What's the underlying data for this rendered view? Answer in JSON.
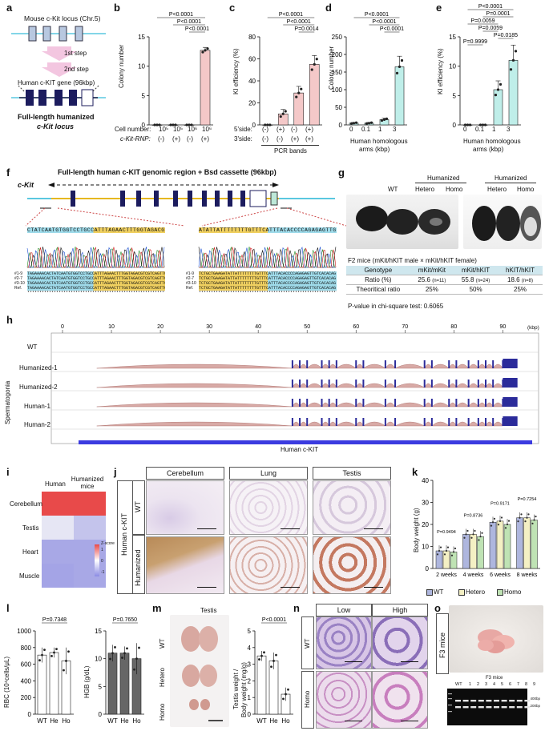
{
  "panels": {
    "a": "a",
    "b": "b",
    "c": "c",
    "d": "d",
    "e": "e",
    "f": "f",
    "g": "g",
    "h": "h",
    "i": "i",
    "j": "j",
    "k": "k",
    "l": "l",
    "m": "m",
    "n": "n",
    "o": "o"
  },
  "panel_a": {
    "mouse_locus": "Mouse c-Kit locus (Chr.5)",
    "step1": "1st step",
    "step2": "2nd step",
    "human_gene": "Human c-KIT gene (96kbp)",
    "result_line1": "Full-length humanized",
    "result_line2": "c-Kit locus"
  },
  "panel_b": {
    "ylabel": "Colony number",
    "row1_label": "Cell number:",
    "row1": [
      "10⁵",
      "10⁵",
      "10⁶",
      "10⁶"
    ],
    "row2_label": "c-Kit-RNP:",
    "row2": [
      "(-)",
      "(+)",
      "(-)",
      "(+)"
    ],
    "yticks": [
      "0",
      "5",
      "10",
      "15"
    ],
    "pvals": [
      "P<0.0001",
      "P<0.0001",
      "P<0.0001"
    ]
  },
  "panel_c": {
    "ylabel": "KI efficiency (%)",
    "row1_label": "5'side:",
    "row1": [
      "(-)",
      "(+)",
      "(-)",
      "(+)"
    ],
    "row2_label": "3'side:",
    "row2": [
      "(-)",
      "(-)",
      "(+)",
      "(+)"
    ],
    "xlabel": "PCR bands",
    "yticks": [
      "0",
      "20",
      "40",
      "60",
      "80"
    ],
    "pvals": [
      "P<0.0001",
      "P<0.0001",
      "P=0.0014"
    ]
  },
  "panel_d": {
    "ylabel": "Colony number",
    "xticks": [
      "0",
      "0.1",
      "1",
      "3"
    ],
    "xlabel1": "Human homologous",
    "xlabel2": "arms (kbp)",
    "yticks": [
      "0",
      "50",
      "100",
      "150",
      "200",
      "250"
    ],
    "pvals": [
      "P<0.0001",
      "P<0.0001",
      "P<0.0001"
    ]
  },
  "panel_e": {
    "ylabel": "KI efficiency (%)",
    "xticks": [
      "0",
      "0.1",
      "1",
      "3"
    ],
    "xlabel1": "Human homologous",
    "xlabel2": "arms (kbp)",
    "yticks": [
      "0",
      "5",
      "10",
      "15"
    ],
    "pvals": [
      "P<0.0001",
      "P=0.0001",
      "P=0.0059",
      "P=0.0059",
      "P=0.0185",
      "P=0.9999"
    ]
  },
  "panel_f": {
    "title": "Full-length human c-KIT genomic region + Bsd cassette (96kbp)",
    "locus": "c-Kit",
    "seq_left": "CTATCAATGTGGTCCTGCCATTTAGAACTTTGGTAGACG",
    "seq_right": "ATATTATTTTTTTTGTTTCATTTACACCCCAGAGAGTTG",
    "row_labels": [
      "#1-9",
      "#2-7",
      "#3-10",
      "Ref."
    ],
    "left_rows": [
      "TAGAAAACACTATCAATGTGGTCCTGCCATTTAGAACTTTGGTAGACGTCGTCAGTTC",
      "TAGAAAACACTATCAATGTGGTCCTGCCATTTAGAACTTTGGTAGACGTCGTCAGTTC",
      "TAGAAAACACTATCAATGTGGTCCTGCCATTTAGAACTTTGGTAGACGTCGTCAGTTC",
      "TAGAAAACACTATCAATGTGGTCCTGCCATTTAGAACTTTGGTAGACGTCGTCAGTTC"
    ],
    "right_rows": [
      "TCTGCTGAAGATATTATTTTTTTTGTTTCATTTACACCCCAGAGAGTTGTCACACAG",
      "TCTGCTGAAGATATTATTTTTTTTGTTTCATTTACACCCCAGAGAGTTGTCACACAG",
      "TCTGCTGAAGATATTATTTTTTTTGTTTCATTTACACCCCAGAGAGTTGTCACACAG",
      "TCTGCTGAAGATATTATTTTTTTTGTTTCATTTACACCCCAGAGAGTTGTCACACAG"
    ],
    "stars": "**************************************************************"
  },
  "panel_g": {
    "labels_left": [
      "WT",
      "Hetero",
      "Homo"
    ],
    "labels_right": [
      "Hetero",
      "Homo"
    ],
    "humanized": "Humanized",
    "table_title": "F2 mice (mKit/hKIT male × mKit/hKIT female)",
    "header": [
      "Genotype",
      "mKit/mKit",
      "mKit/hKIT",
      "hKIT/hKIT"
    ],
    "ratio_label": "Ratio (%)",
    "ratio": [
      "25.6",
      "55.8",
      "18.6"
    ],
    "ratio_n": [
      "(n=11)",
      "(n=24)",
      "(n=8)"
    ],
    "theo_label": "Theoritical ratio",
    "theo": [
      "25%",
      "50%",
      "25%"
    ],
    "pval": "P-value in chi-square test: 0.6065"
  },
  "panel_h": {
    "unit": "(kbp)",
    "ticks": [
      "0",
      "10",
      "20",
      "30",
      "40",
      "50",
      "60",
      "70",
      "80",
      "90"
    ],
    "tracks": [
      "WT",
      "Humanized-1",
      "Humanized-2",
      "Human-1",
      "Human-2"
    ],
    "side_label": "Spermatogonia",
    "gene": "Human c-KIT"
  },
  "panel_i": {
    "cols": [
      "Human",
      "Humanized mice"
    ],
    "rows": [
      "Cerebellum",
      "Testis",
      "Heart",
      "Muscle"
    ],
    "legend_title": "Z-score",
    "legend_ticks": [
      "1",
      "0",
      "-1"
    ]
  },
  "panel_j": {
    "cols": [
      "Cerebellum",
      "Lung",
      "Testis"
    ],
    "rows": [
      "WT",
      "Humanized"
    ],
    "side_label": "Human c-KIT"
  },
  "panel_k": {
    "ylabel": "Body weight (g)",
    "groups": [
      "2 weeks",
      "4 weeks",
      "6 weeks",
      "8 weeks"
    ],
    "pvals": [
      "P=0.9494",
      "P=0.8736",
      "P=0.9171",
      "P=0.7254"
    ],
    "legend": [
      "WT",
      "Hetero",
      "Homo"
    ],
    "yticks": [
      "0",
      "10",
      "20",
      "30",
      "40"
    ]
  },
  "panel_l": {
    "ylabel1": "RBC (10⁴cells/μL)",
    "ylabel2": "HGB (g/dL)",
    "xticks": [
      "WT",
      "He",
      "Ho"
    ],
    "pval1": "P=0.7348",
    "pval2": "P=0.7650",
    "yticks1": [
      "0",
      "200",
      "400",
      "600",
      "800",
      "1000"
    ],
    "yticks2": [
      "0",
      "5",
      "10",
      "15"
    ]
  },
  "panel_m": {
    "title": "Testis",
    "labels": [
      "WT",
      "Hetero",
      "Homo"
    ],
    "ylabel1": "Testis weight /",
    "ylabel2": "Body weight (mg/g)",
    "xticks": [
      "WT",
      "He",
      "Ho"
    ],
    "pval": "P<0.0001",
    "yticks": [
      "0",
      "1",
      "2",
      "3",
      "4",
      "5"
    ]
  },
  "panel_n": {
    "cols": [
      "Low",
      "High"
    ],
    "rows": [
      "WT",
      "Homo"
    ]
  },
  "panel_o": {
    "side_label": "F3 mice",
    "gel_title": "F3 mice",
    "lanes": [
      "WT",
      "1",
      "2",
      "3",
      "4",
      "5",
      "6",
      "7",
      "8",
      "9"
    ],
    "markers": [
      "400bp",
      "200bp"
    ]
  },
  "chart_data": [
    {
      "id": "b",
      "type": "bar",
      "categories": [
        "1",
        "2",
        "3",
        "4"
      ],
      "values": [
        0,
        0,
        0,
        12.7
      ],
      "ylim": [
        0,
        15
      ],
      "ylabel": "Colony number"
    },
    {
      "id": "c",
      "type": "bar",
      "categories": [
        "1",
        "2",
        "3",
        "4"
      ],
      "values": [
        0,
        10,
        29,
        55
      ],
      "ylim": [
        0,
        80
      ],
      "ylabel": "KI efficiency (%)"
    },
    {
      "id": "d",
      "type": "bar",
      "categories": [
        "0",
        "0.1",
        "1",
        "3"
      ],
      "values": [
        5,
        5,
        15,
        165
      ],
      "ylim": [
        0,
        250
      ],
      "ylabel": "Colony number"
    },
    {
      "id": "e",
      "type": "bar",
      "categories": [
        "0",
        "0.1",
        "1",
        "3"
      ],
      "values": [
        0,
        0,
        6,
        11
      ],
      "ylim": [
        0,
        15
      ],
      "ylabel": "KI efficiency (%)"
    },
    {
      "id": "k",
      "type": "bar",
      "categories": [
        "2 weeks",
        "4 weeks",
        "6 weeks",
        "8 weeks"
      ],
      "series": [
        {
          "name": "WT",
          "values": [
            8,
            15.5,
            21,
            23
          ]
        },
        {
          "name": "Hetero",
          "values": [
            8,
            15.5,
            21.5,
            23
          ]
        },
        {
          "name": "Homo",
          "values": [
            7.5,
            14.5,
            20,
            22
          ]
        }
      ],
      "ylim": [
        0,
        40
      ]
    },
    {
      "id": "l1",
      "type": "bar",
      "categories": [
        "WT",
        "He",
        "Ho"
      ],
      "values": [
        710,
        740,
        640
      ],
      "ylim": [
        0,
        1000
      ]
    },
    {
      "id": "l2",
      "type": "bar",
      "categories": [
        "WT",
        "He",
        "Ho"
      ],
      "values": [
        11,
        11,
        10
      ],
      "ylim": [
        0,
        15
      ]
    },
    {
      "id": "m",
      "type": "bar",
      "categories": [
        "WT",
        "He",
        "Ho"
      ],
      "values": [
        3.5,
        3.2,
        1.2
      ],
      "ylim": [
        0,
        5
      ]
    }
  ]
}
